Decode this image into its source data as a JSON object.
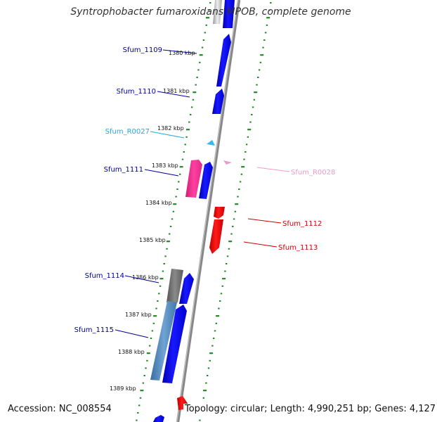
{
  "title": "Syntrophobacter fumaroxidans MPOB, complete genome",
  "accession": "Accession: NC_008554",
  "summary": "Topology: circular; Length: 4,990,251 bp; Genes: 4,127",
  "colors": {
    "forward_gene": "#0000ee",
    "reverse_gene": "#ee0000",
    "rna_forward": "#33bbee",
    "rna_reverse": "#ee99cc",
    "pink_gene": "#ee2a8c",
    "grey_gene": "#666666",
    "steel_gene": "#4a84b8",
    "ticks": "#228822",
    "backbone": "#888888"
  },
  "ticks": [
    "1380 kbp",
    "1381 kbp",
    "1382 kbp",
    "1383 kbp",
    "1384 kbp",
    "1385 kbp",
    "1386 kbp",
    "1387 kbp",
    "1388 kbp",
    "1389 kbp"
  ],
  "features": [
    {
      "label": "Sfum_1109",
      "color": "#000099"
    },
    {
      "label": "Sfum_1110",
      "color": "#000099"
    },
    {
      "label": "Sfum_R0027",
      "color": "#22aadd"
    },
    {
      "label": "Sfum_1111",
      "color": "#000099"
    },
    {
      "label": "Sfum_R0028",
      "color": "#ee99cc"
    },
    {
      "label": "Sfum_1112",
      "color": "#cc0000"
    },
    {
      "label": "Sfum_1113",
      "color": "#cc0000"
    },
    {
      "label": "Sfum_1114",
      "color": "#000099"
    },
    {
      "label": "Sfum_1115",
      "color": "#000099"
    }
  ]
}
